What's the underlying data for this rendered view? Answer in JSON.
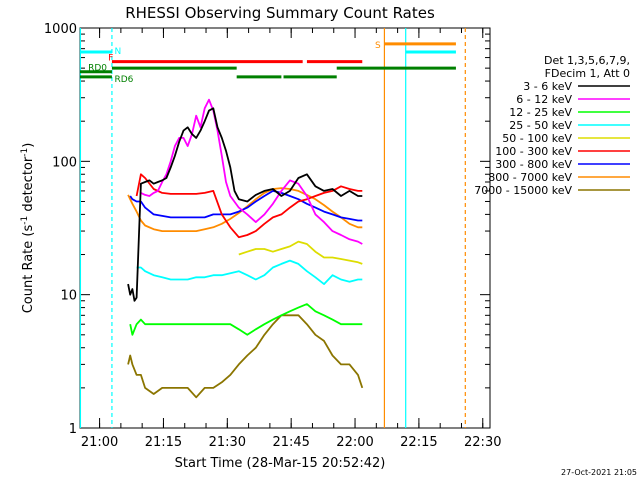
{
  "chart_data": {
    "type": "line",
    "title": "RHESSI Observing Summary Count Rates",
    "xlabel": "Start Time (28-Mar-15 20:52:42)",
    "ylabel_main": "Count Rate (s",
    "ylabel_exp1": "-1",
    "ylabel_mid": " detector",
    "ylabel_exp2": "-1",
    "ylabel_end": ")",
    "y_scale": "log",
    "ylim": [
      1,
      1000
    ],
    "xlim_min": [
      2.7,
      99.0
    ],
    "y_ticks": [
      {
        "value": 1,
        "label": "1"
      },
      {
        "value": 10,
        "label": "10"
      },
      {
        "value": 100,
        "label": "100"
      },
      {
        "value": 1000,
        "label": "1000"
      }
    ],
    "x_ticks": [
      {
        "value": 7.3,
        "label": "21:00"
      },
      {
        "value": 22.3,
        "label": "21:15"
      },
      {
        "value": 37.3,
        "label": "21:30"
      },
      {
        "value": 52.3,
        "label": "21:45"
      },
      {
        "value": 67.3,
        "label": "22:00"
      },
      {
        "value": 82.3,
        "label": "22:15"
      },
      {
        "value": 97.3,
        "label": "22:30"
      }
    ],
    "legend_header": [
      "Det 1,3,5,6,7,9,",
      "FDecim 1, Att 0"
    ],
    "series": [
      {
        "name": "3 - 6 keV",
        "color": "#000000",
        "x": [
          14,
          14.5,
          15,
          15.5,
          16,
          17,
          18,
          19,
          20,
          21,
          22,
          23,
          24,
          25,
          26,
          27,
          28,
          29,
          30,
          31,
          32,
          33,
          34,
          35,
          36,
          37,
          38,
          39,
          40,
          42,
          44,
          46,
          48,
          50,
          52,
          54,
          56,
          58,
          60,
          62,
          64,
          66,
          68,
          69
        ],
        "y": [
          12,
          10,
          11,
          9,
          9.5,
          68,
          70,
          72,
          68,
          70,
          72,
          75,
          90,
          110,
          140,
          170,
          180,
          160,
          150,
          170,
          200,
          240,
          250,
          180,
          150,
          120,
          90,
          60,
          52,
          50,
          56,
          60,
          62,
          55,
          60,
          75,
          80,
          65,
          60,
          62,
          55,
          60,
          55,
          55
        ]
      },
      {
        "name": "6 - 12 keV",
        "color": "#ff00ff",
        "x": [
          17,
          18,
          19,
          20,
          21,
          22,
          23,
          24,
          25,
          26,
          27,
          28,
          29,
          30,
          31,
          32,
          33,
          34,
          35,
          36,
          37,
          38,
          40,
          42,
          44,
          46,
          48,
          50,
          52,
          54,
          56,
          58,
          60,
          62,
          64,
          66,
          68,
          69
        ],
        "y": [
          58,
          56,
          55,
          58,
          60,
          70,
          80,
          100,
          130,
          150,
          150,
          130,
          160,
          220,
          180,
          250,
          290,
          240,
          170,
          110,
          70,
          55,
          45,
          40,
          35,
          40,
          48,
          60,
          72,
          68,
          55,
          40,
          35,
          30,
          28,
          26,
          25,
          24
        ]
      },
      {
        "name": "12 - 25 keV",
        "color": "#00ff00",
        "x": [
          14.5,
          15,
          16,
          17,
          18,
          20,
          22,
          24,
          26,
          28,
          30,
          32,
          34,
          36,
          38,
          40,
          42,
          44,
          46,
          48,
          50,
          52,
          54,
          56,
          58,
          60,
          62,
          64,
          66,
          68,
          69
        ],
        "y": [
          6,
          5,
          6,
          6.5,
          6,
          6,
          6,
          6,
          6,
          6,
          6,
          6,
          6,
          6,
          6,
          5.5,
          5,
          5.5,
          6,
          6.5,
          7,
          7.5,
          8,
          8.5,
          7.5,
          7,
          6.5,
          6,
          6,
          6,
          6
        ]
      },
      {
        "name": "25 - 50 keV",
        "color": "#00ffff",
        "x": [
          16,
          17,
          18,
          20,
          22,
          24,
          26,
          28,
          30,
          32,
          34,
          36,
          38,
          40,
          42,
          44,
          46,
          48,
          50,
          52,
          54,
          56,
          58,
          60,
          62,
          64,
          66,
          68,
          69
        ],
        "y": [
          16,
          16,
          15,
          14,
          13.5,
          13,
          13,
          13,
          13.5,
          13.5,
          14,
          14,
          14.5,
          15,
          14,
          13,
          14,
          16,
          17,
          18,
          17,
          15,
          13.5,
          12,
          14,
          13,
          12.5,
          13,
          13
        ]
      },
      {
        "name": "50 - 100 keV",
        "color": "#dddd00",
        "x": [
          40,
          42,
          44,
          46,
          48,
          50,
          52,
          54,
          56,
          58,
          60,
          62,
          64,
          66,
          68,
          69
        ],
        "y": [
          20,
          21,
          22,
          22,
          21,
          22,
          23,
          25,
          24,
          21,
          19,
          19,
          18.5,
          18,
          17.5,
          17
        ]
      },
      {
        "name": "100 - 300 keV",
        "color": "#ff0000",
        "x": [
          16,
          17,
          18,
          20,
          22,
          24,
          26,
          28,
          30,
          32,
          34,
          36,
          38,
          40,
          42,
          44,
          46,
          48,
          50,
          52,
          54,
          56,
          58,
          60,
          62,
          64,
          66,
          68,
          69
        ],
        "y": [
          55,
          80,
          75,
          62,
          58,
          57,
          57,
          57,
          57,
          58,
          60,
          40,
          32,
          27,
          28,
          30,
          34,
          38,
          40,
          45,
          50,
          52,
          55,
          58,
          60,
          65,
          62,
          60,
          60
        ]
      },
      {
        "name": "300 - 800 keV",
        "color": "#0000ff",
        "x": [
          14.5,
          15,
          16,
          17,
          18,
          20,
          22,
          24,
          26,
          28,
          30,
          32,
          34,
          36,
          38,
          40,
          42,
          44,
          46,
          48,
          50,
          52,
          54,
          56,
          58,
          60,
          62,
          64,
          66,
          68,
          69
        ],
        "y": [
          55,
          52,
          50,
          50,
          45,
          40,
          39,
          38,
          38,
          38,
          38,
          38,
          40,
          40,
          40,
          42,
          45,
          50,
          55,
          60,
          58,
          55,
          52,
          48,
          45,
          42,
          40,
          38,
          37,
          36,
          36
        ]
      },
      {
        "name": "800 - 7000 keV",
        "color": "#ff8c00",
        "x": [
          14,
          15,
          16,
          17,
          18,
          20,
          22,
          24,
          26,
          28,
          30,
          32,
          34,
          36,
          38,
          40,
          42,
          44,
          46,
          48,
          50,
          52,
          54,
          56,
          58,
          60,
          62,
          64,
          66,
          68,
          69
        ],
        "y": [
          56,
          48,
          42,
          36,
          33,
          31,
          30,
          30,
          30,
          30,
          30,
          31,
          32,
          34,
          37,
          41,
          46,
          52,
          58,
          62,
          63,
          62,
          60,
          56,
          52,
          47,
          42,
          38,
          34,
          32,
          32
        ]
      },
      {
        "name": "7000 - 15000 keV",
        "color": "#8b7500",
        "x": [
          14,
          14.5,
          15,
          16,
          17,
          18,
          20,
          22,
          24,
          26,
          28,
          30,
          32,
          34,
          36,
          38,
          40,
          42,
          44,
          46,
          48,
          50,
          52,
          54,
          56,
          58,
          60,
          62,
          64,
          66,
          68,
          69
        ],
        "y": [
          3,
          3.5,
          3,
          2.5,
          2.5,
          2,
          1.8,
          2,
          2,
          2,
          2,
          1.7,
          2,
          2,
          2.2,
          2.5,
          3,
          3.5,
          4,
          5,
          6,
          7,
          7,
          7,
          6,
          5,
          4.5,
          3.5,
          3,
          3,
          2.5,
          2
        ]
      }
    ],
    "state_bars": [
      {
        "label": "F",
        "color": "#ff0000",
        "y": 560,
        "segments": [
          [
            10.2,
            55
          ],
          [
            56,
            69
          ]
        ]
      },
      {
        "label": "N",
        "color": "#00ffff",
        "y": 660,
        "segments": [
          [
            2.7,
            10.2
          ],
          [
            79.2,
            91
          ]
        ]
      },
      {
        "label": "S",
        "color": "#ff8c00",
        "y": 760,
        "segments": [
          [
            74.2,
            91
          ]
        ]
      },
      {
        "label": "RD0",
        "color": "#008000",
        "y": 470,
        "segments": [
          [
            2.7,
            10.2
          ]
        ]
      },
      {
        "label": "RD6",
        "color": "#008000",
        "y": 430,
        "segments": [
          [
            2.7,
            10.2
          ],
          [
            39.5,
            50
          ],
          [
            50.5,
            63
          ]
        ]
      },
      {
        "label": "",
        "color": "#008000",
        "y": 500,
        "segments": [
          [
            10.2,
            39.5
          ],
          [
            63,
            91
          ]
        ]
      }
    ],
    "vlines": [
      {
        "x": 2.8,
        "color": "#00ffff",
        "dashed": false
      },
      {
        "x": 10.2,
        "color": "#00ffff",
        "dashed": true
      },
      {
        "x": 74.2,
        "color": "#ff8c00",
        "dashed": false
      },
      {
        "x": 79.2,
        "color": "#00ffff",
        "dashed": false
      },
      {
        "x": 93.2,
        "color": "#ff8c00",
        "dashed": true
      }
    ],
    "timestamp": "27-Oct-2021 21:05"
  }
}
